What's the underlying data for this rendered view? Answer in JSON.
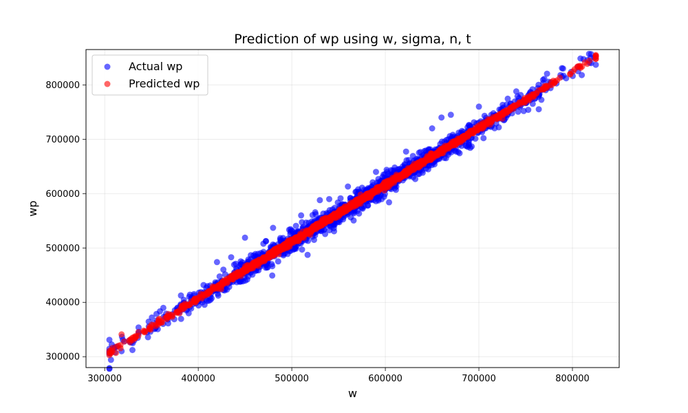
{
  "chart_data": {
    "type": "scatter",
    "title": "Prediction of wp using w, sigma, n, t",
    "xlabel": "w",
    "ylabel": "wp",
    "xlim": [
      280000,
      850000
    ],
    "ylim": [
      280000,
      865000
    ],
    "xticks": [
      300000,
      400000,
      500000,
      600000,
      700000,
      800000
    ],
    "yticks": [
      300000,
      400000,
      500000,
      600000,
      700000,
      800000
    ],
    "xtick_labels": [
      "300000",
      "400000",
      "500000",
      "600000",
      "700000",
      "800000"
    ],
    "ytick_labels": [
      "300000",
      "400000",
      "500000",
      "600000",
      "700000",
      "800000"
    ],
    "grid": true,
    "legend_position": "top-left",
    "series": [
      {
        "name": "Actual wp",
        "color": "#0000ff",
        "alpha": 0.6,
        "marker": "circle",
        "x_range": [
          305000,
          825000
        ],
        "trend": {
          "slope": 1.045,
          "intercept": -11000
        },
        "scatter_sd": 10000,
        "points": [
          [
            310000,
            316000
          ],
          [
            321000,
            328000
          ],
          [
            330000,
            325000
          ],
          [
            420000,
            474000
          ],
          [
            450000,
            519000
          ],
          [
            480000,
            537000
          ],
          [
            510000,
            560000
          ],
          [
            530000,
            588000
          ],
          [
            540000,
            590000
          ],
          [
            560000,
            613000
          ],
          [
            590000,
            640000
          ],
          [
            610000,
            648000
          ],
          [
            650000,
            720000
          ],
          [
            660000,
            740000
          ],
          [
            670000,
            745000
          ],
          [
            700000,
            760000
          ],
          [
            740000,
            788000
          ],
          [
            770000,
            811000
          ],
          [
            790000,
            830000
          ],
          [
            810000,
            818000
          ],
          [
            820000,
            840000
          ]
        ]
      },
      {
        "name": "Predicted wp",
        "color": "#ff0000",
        "alpha": 0.6,
        "marker": "circle",
        "x_range": [
          305000,
          825000
        ],
        "trend": {
          "slope": 1.045,
          "intercept": -11000
        },
        "scatter_sd": 2500,
        "points": [
          [
            306000,
            308000
          ],
          [
            312000,
            307000
          ],
          [
            318000,
            341000
          ],
          [
            825000,
            848000
          ]
        ]
      }
    ]
  }
}
